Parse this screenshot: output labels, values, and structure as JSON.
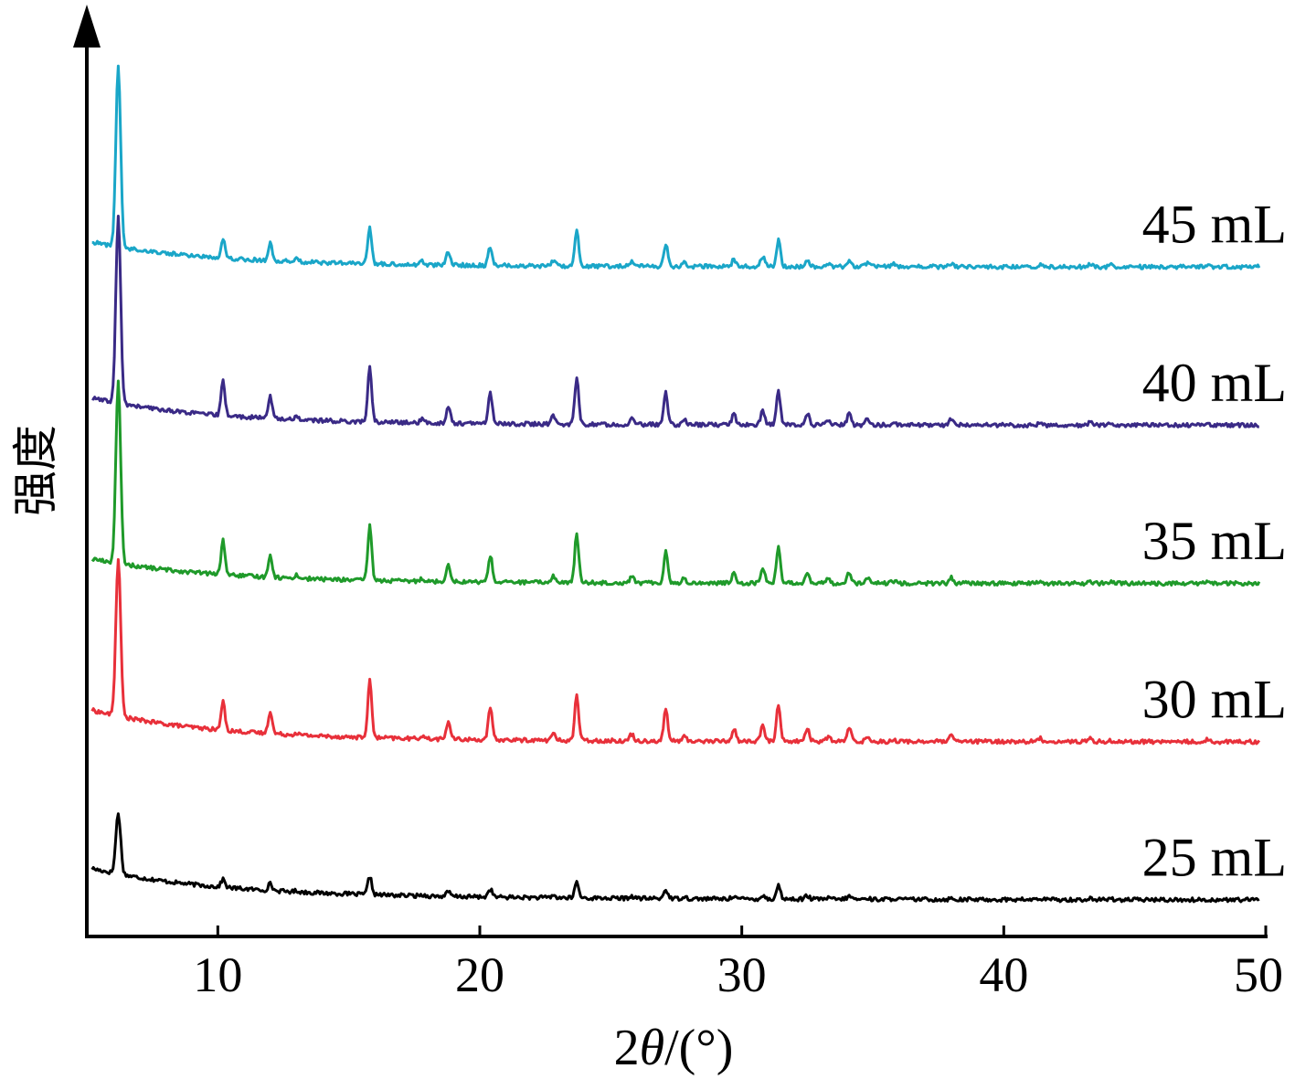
{
  "chart_data": {
    "type": "line",
    "xlabel_prefix": "2",
    "xlabel_theta": "θ",
    "xlabel_suffix": "/(°)",
    "ylabel": "强度",
    "xlim": [
      5,
      50
    ],
    "xticks": [
      10,
      20,
      30,
      40,
      50
    ],
    "peak_positions": [
      6.2,
      10.2,
      12.0,
      13.0,
      15.8,
      17.8,
      18.8,
      20.4,
      22.8,
      23.7,
      25.8,
      27.1,
      27.8,
      29.7,
      30.8,
      31.4,
      32.5,
      33.3,
      34.1,
      34.8,
      35.8,
      38.0,
      41.4,
      43.3,
      44.1,
      47.8
    ],
    "series": [
      {
        "name": "25 mL",
        "color": "#000000",
        "offset": 0,
        "baseline": [
          2.2,
          0.6,
          0.0,
          0.0
        ],
        "heights": [
          5.4,
          0.7,
          0.6,
          0.1,
          1.6,
          0.1,
          0.4,
          0.7,
          0.2,
          1.4,
          0.2,
          0.8,
          0.2,
          0.3,
          0.3,
          1.2,
          0.3,
          0.1,
          0.3,
          0.1,
          0.1,
          0.1,
          0.1,
          0.1,
          0.1,
          0.0
        ]
      },
      {
        "name": "30 mL",
        "color": "#e8303a",
        "offset": 14,
        "baseline": [
          2.5,
          0.3,
          0.0,
          0.0
        ],
        "heights": [
          14.0,
          2.5,
          2.0,
          0.2,
          5.0,
          0.3,
          1.6,
          2.8,
          0.6,
          4.0,
          0.6,
          2.8,
          0.4,
          1.1,
          1.4,
          3.3,
          1.2,
          0.4,
          1.2,
          0.4,
          0.1,
          0.5,
          0.3,
          0.3,
          0.1,
          0.2
        ]
      },
      {
        "name": "35 mL",
        "color": "#1f9a2a",
        "offset": 28,
        "baseline": [
          2.0,
          0.2,
          0.0,
          0.0
        ],
        "heights": [
          16.0,
          3.0,
          2.0,
          0.3,
          4.8,
          0.3,
          1.6,
          2.4,
          0.6,
          4.3,
          0.6,
          2.8,
          0.4,
          1.0,
          1.4,
          3.3,
          1.0,
          0.4,
          1.0,
          0.4,
          0.2,
          0.5,
          0.2,
          0.2,
          0.2,
          0.2
        ]
      },
      {
        "name": "40 mL",
        "color": "#3a2a86",
        "offset": 42,
        "baseline": [
          2.2,
          0.2,
          0.0,
          0.0
        ],
        "heights": [
          16.5,
          3.0,
          2.0,
          0.3,
          4.8,
          0.3,
          1.5,
          2.8,
          0.7,
          4.1,
          0.6,
          2.8,
          0.5,
          1.0,
          1.3,
          3.0,
          1.0,
          0.4,
          1.0,
          0.5,
          0.2,
          0.6,
          0.3,
          0.3,
          0.2,
          0.2
        ]
      },
      {
        "name": "45 mL",
        "color": "#1aa6c8",
        "offset": 56,
        "baseline": [
          2.0,
          0.2,
          0.0,
          0.0
        ],
        "heights": [
          16.0,
          1.8,
          1.5,
          0.4,
          3.2,
          0.3,
          1.2,
          1.7,
          0.5,
          3.2,
          0.4,
          2.0,
          0.3,
          0.6,
          0.9,
          2.3,
          0.6,
          0.3,
          0.6,
          0.3,
          0.2,
          0.3,
          0.2,
          0.2,
          0.2,
          0.2
        ]
      }
    ],
    "ylim": [
      -2,
      78
    ],
    "grid": false
  }
}
